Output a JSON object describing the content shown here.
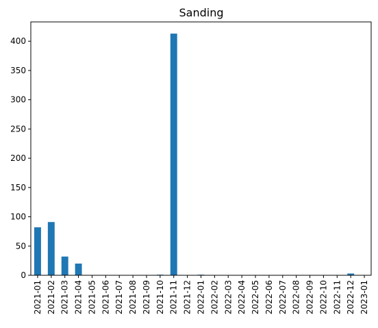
{
  "chart_data": {
    "type": "bar",
    "title": "Sanding",
    "xlabel": "",
    "ylabel": "",
    "categories": [
      "2021-01",
      "2021-02",
      "2021-03",
      "2021-04",
      "2021-05",
      "2021-06",
      "2021-07",
      "2021-08",
      "2021-09",
      "2021-10",
      "2021-11",
      "2021-12",
      "2022-01",
      "2022-02",
      "2022-03",
      "2022-04",
      "2022-05",
      "2022-06",
      "2022-07",
      "2022-08",
      "2022-09",
      "2022-10",
      "2022-11",
      "2022-12",
      "2023-01"
    ],
    "values": [
      82,
      91,
      32,
      20,
      0,
      0,
      0,
      0,
      0,
      1,
      413,
      0,
      1,
      0,
      0,
      0,
      0,
      0,
      0,
      0,
      0,
      0,
      0,
      3,
      0
    ],
    "ylim": [
      0,
      433
    ],
    "yticks": [
      0,
      50,
      100,
      150,
      200,
      250,
      300,
      350,
      400
    ],
    "grid": false,
    "bar_color": "#1f77b4"
  }
}
